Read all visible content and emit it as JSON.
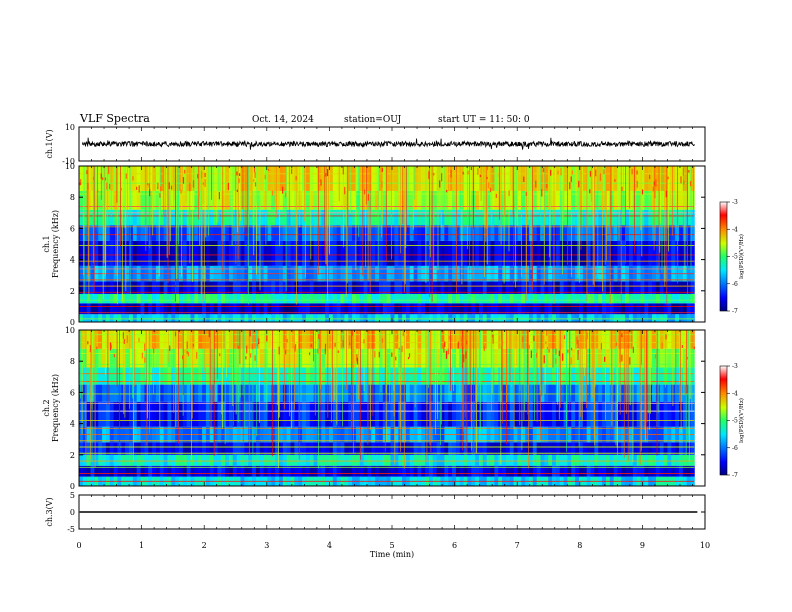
{
  "header": {
    "title": "VLF Spectra",
    "date": "Oct. 14, 2024",
    "station": "station=OUJ",
    "start": "start  UT  =   11: 50: 0"
  },
  "chart_data": {
    "type": "heatmap",
    "x": {
      "label": "Time  (min)",
      "range": [
        0,
        10
      ],
      "ticks": [
        "0",
        "1",
        "2",
        "3",
        "4",
        "5",
        "6",
        "7",
        "8",
        "9",
        "10"
      ],
      "data_end": 9.83
    },
    "panels": [
      {
        "kind": "waveform",
        "ylabel": "ch.1(V)",
        "ylim": [
          -10,
          10
        ],
        "ticks": [
          "10",
          "-10"
        ],
        "baseline": 0,
        "amplitude": 1.5
      },
      {
        "kind": "spectrogram",
        "ylabel": "ch.1\nFrequency  (kHz)",
        "ylim": [
          0,
          10
        ],
        "ticks": [
          "0",
          "2",
          "4",
          "6",
          "8",
          "10"
        ],
        "colorbar": {
          "label": "log(PSD)(V²/Hz)",
          "range": [
            -7,
            -3
          ],
          "ticks": [
            "-3",
            "-4",
            "-5",
            "-6",
            "-7"
          ]
        },
        "bands": [
          {
            "from": 0,
            "to": 0.5,
            "level": -5.6
          },
          {
            "from": 0.5,
            "to": 1.2,
            "level": -6.7
          },
          {
            "from": 1.2,
            "to": 1.8,
            "level": -5.2
          },
          {
            "from": 1.8,
            "to": 2.6,
            "level": -6.6
          },
          {
            "from": 2.6,
            "to": 3.6,
            "level": -5.8
          },
          {
            "from": 3.6,
            "to": 5.2,
            "level": -6.6
          },
          {
            "from": 5.2,
            "to": 6.2,
            "level": -6.1
          },
          {
            "from": 6.2,
            "to": 7.2,
            "level": -5.3
          },
          {
            "from": 7.2,
            "to": 8.4,
            "level": -4.6
          },
          {
            "from": 8.4,
            "to": 10,
            "level": -4.4
          }
        ],
        "lines_khz": [
          0.2,
          0.6,
          1.0,
          1.4,
          1.9,
          2.3,
          2.7,
          3.1,
          3.4,
          3.9,
          4.3,
          4.9,
          5.6,
          6.1,
          6.8,
          7.0,
          7.4,
          8.2,
          8.9,
          9.5
        ]
      },
      {
        "kind": "spectrogram",
        "ylabel": "ch.2\nFrequency  (kHz)",
        "ylim": [
          0,
          10
        ],
        "ticks": [
          "0",
          "2",
          "4",
          "6",
          "8",
          "10"
        ],
        "colorbar": {
          "label": "log(PSD)(V²/Hz)",
          "range": [
            -7,
            -3
          ],
          "ticks": [
            "-3",
            "-4",
            "-5",
            "-6",
            "-7"
          ]
        },
        "bands": [
          {
            "from": 0,
            "to": 0.6,
            "level": -5.5
          },
          {
            "from": 0.6,
            "to": 1.3,
            "level": -6.6
          },
          {
            "from": 1.3,
            "to": 2.0,
            "level": -5.4
          },
          {
            "from": 2.0,
            "to": 2.8,
            "level": -6.5
          },
          {
            "from": 2.8,
            "to": 3.8,
            "level": -5.9
          },
          {
            "from": 3.8,
            "to": 5.4,
            "level": -6.4
          },
          {
            "from": 5.4,
            "to": 6.5,
            "level": -6.0
          },
          {
            "from": 6.5,
            "to": 7.6,
            "level": -5.2
          },
          {
            "from": 7.6,
            "to": 8.8,
            "level": -4.6
          },
          {
            "from": 8.8,
            "to": 10,
            "level": -4.3
          }
        ],
        "lines_khz": [
          0.3,
          0.8,
          1.2,
          1.6,
          2.1,
          2.5,
          2.9,
          3.3,
          3.7,
          4.2,
          4.8,
          5.3,
          5.9,
          6.7,
          7.2,
          7.8,
          8.5,
          9.2,
          9.7
        ]
      },
      {
        "kind": "waveform",
        "ylabel": "ch.3(V)",
        "ylim": [
          -5,
          5
        ],
        "ticks": [
          "5",
          "0",
          "-5"
        ],
        "baseline": 0,
        "amplitude": 0
      }
    ]
  }
}
